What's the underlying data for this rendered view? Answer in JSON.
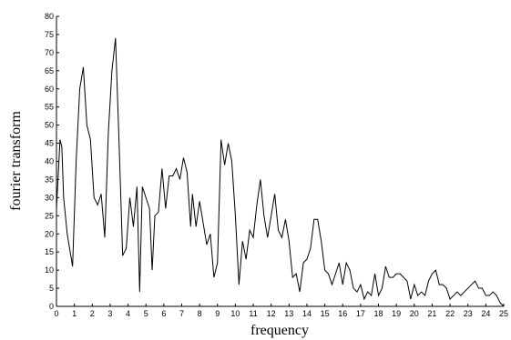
{
  "chart_data": {
    "type": "line",
    "xlabel": "frequency",
    "ylabel": "fourier transform",
    "color": "#000000",
    "x": [
      0,
      0.2,
      0.3,
      0.4,
      0.6,
      0.9,
      1.1,
      1.3,
      1.5,
      1.7,
      1.9,
      2.1,
      2.3,
      2.5,
      2.7,
      2.9,
      3.1,
      3.3,
      3.5,
      3.7,
      3.9,
      4.1,
      4.3,
      4.5,
      4.65,
      4.8,
      5.0,
      5.2,
      5.35,
      5.5,
      5.7,
      5.9,
      6.1,
      6.3,
      6.5,
      6.7,
      6.9,
      7.1,
      7.3,
      7.5,
      7.6,
      7.8,
      8.0,
      8.2,
      8.4,
      8.6,
      8.8,
      9.0,
      9.2,
      9.4,
      9.6,
      9.8,
      10.0,
      10.2,
      10.4,
      10.6,
      10.8,
      11.0,
      11.2,
      11.4,
      11.6,
      11.8,
      12.0,
      12.2,
      12.4,
      12.6,
      12.8,
      13.0,
      13.2,
      13.4,
      13.6,
      13.8,
      14.0,
      14.2,
      14.4,
      14.6,
      14.8,
      15.0,
      15.2,
      15.4,
      15.6,
      15.8,
      16.0,
      16.2,
      16.4,
      16.6,
      16.8,
      17.0,
      17.2,
      17.4,
      17.6,
      17.8,
      18.0,
      18.2,
      18.4,
      18.6,
      18.8,
      19.0,
      19.2,
      19.4,
      19.6,
      19.8,
      20.0,
      20.2,
      20.4,
      20.6,
      20.8,
      21.0,
      21.2,
      21.4,
      21.6,
      21.8,
      22.0,
      22.2,
      22.4,
      22.6,
      22.8,
      23.0,
      23.2,
      23.4,
      23.6,
      23.8,
      24.0,
      24.2,
      24.4,
      24.6,
      24.8,
      25
    ],
    "values": [
      27,
      46,
      44,
      30,
      20,
      11,
      40,
      60,
      66,
      50,
      46,
      30,
      28,
      31,
      19,
      48,
      65,
      74,
      45,
      14,
      16,
      30,
      22,
      33,
      4,
      33,
      30,
      27,
      10,
      25,
      26,
      38,
      27,
      36,
      36,
      38,
      35,
      41,
      37,
      22,
      31,
      22,
      29,
      23,
      17,
      20,
      8,
      12,
      46,
      39,
      45,
      40,
      25,
      6,
      18,
      13,
      21,
      19,
      28,
      35,
      25,
      19,
      25,
      31,
      21,
      19,
      24,
      18,
      8,
      9,
      4,
      12,
      13,
      16,
      24,
      24,
      18,
      10,
      9,
      6,
      9,
      12,
      6,
      12,
      10,
      5,
      4,
      6,
      2,
      4,
      3,
      9,
      3,
      5,
      11,
      8,
      8,
      9,
      9,
      8,
      7,
      2,
      6,
      3,
      4,
      3,
      7,
      9,
      10,
      6,
      6,
      5,
      2,
      3,
      4,
      3,
      4,
      5,
      6,
      7,
      5,
      5,
      3,
      3,
      4,
      3,
      1,
      0
    ],
    "xlim": [
      0,
      25
    ],
    "ylim": [
      0,
      80
    ],
    "xticks": [
      0,
      1,
      2,
      3,
      4,
      5,
      6,
      7,
      8,
      9,
      10,
      11,
      12,
      13,
      14,
      15,
      16,
      17,
      18,
      19,
      20,
      21,
      22,
      23,
      24,
      25
    ],
    "yticks": [
      0,
      5,
      10,
      15,
      20,
      25,
      30,
      35,
      40,
      45,
      50,
      55,
      60,
      65,
      70,
      75,
      80
    ]
  }
}
